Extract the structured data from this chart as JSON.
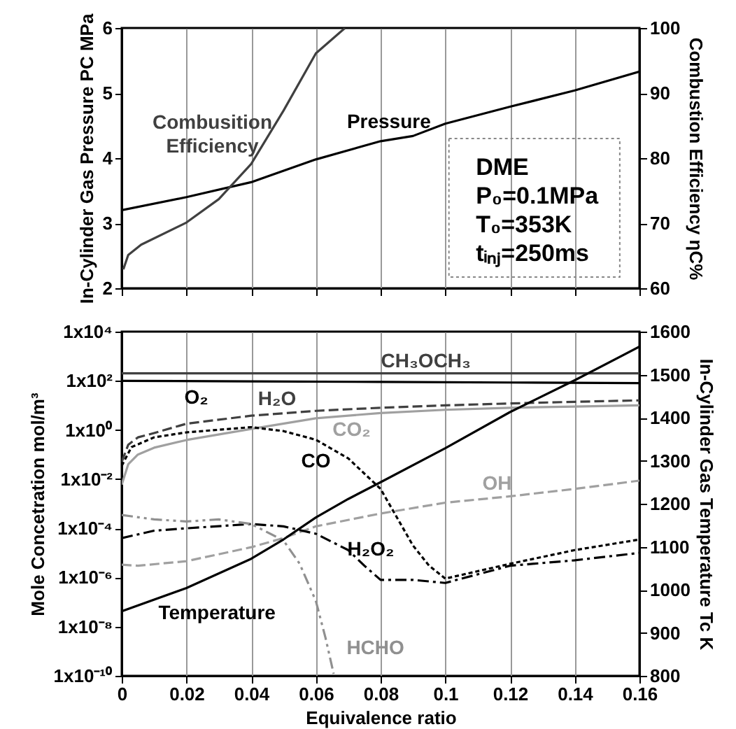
{
  "chart_data": [
    {
      "type": "line",
      "ylabel": "In-Cylinder Gas Pressure PC MPa",
      "y2label": "Combustion Efficiency ηC%",
      "xlim": [
        0,
        0.16
      ],
      "xticks": [
        0,
        0.02,
        0.04,
        0.06,
        0.08,
        0.1,
        0.12,
        0.14,
        0.16
      ],
      "ylim": [
        2,
        6
      ],
      "yticks": [
        2,
        3,
        4,
        5,
        6
      ],
      "y2lim": [
        60,
        100
      ],
      "y2ticks": [
        60,
        70,
        80,
        90,
        100
      ],
      "grid": "x",
      "tick_labels": "y",
      "series": [
        {
          "name": "Pressure",
          "color": "#000000",
          "line_style": "solid",
          "x": [
            0,
            0.02,
            0.04,
            0.06,
            0.08,
            0.09,
            0.1,
            0.12,
            0.14,
            0.16
          ],
          "values": [
            3.2,
            3.4,
            3.63,
            3.98,
            4.26,
            4.34,
            4.53,
            4.79,
            5.04,
            5.33
          ]
        },
        {
          "name": "Combusition Efficiency",
          "color": "#404040",
          "line_style": "solid",
          "axis": "y2",
          "x": [
            0.0005,
            0.002,
            0.006,
            0.02,
            0.03,
            0.04,
            0.05,
            0.06,
            0.069
          ],
          "values": [
            62.9,
            65.1,
            66.7,
            70.1,
            73.7,
            79.1,
            87.3,
            96.1,
            100
          ]
        }
      ],
      "annotations": [
        "DME",
        "P₀=0.1MPa",
        "T₀=353K",
        "tᵢₙⱼ=250ms"
      ]
    },
    {
      "type": "line",
      "xlabel": "Equivalence ratio",
      "ylabel": "Mole Concetration mol/m³",
      "y2label": "In-Cylinder Gas Temperature Tc K",
      "log": "y",
      "xlim": [
        0,
        0.16
      ],
      "xticks": [
        0,
        0.02,
        0.04,
        0.06,
        0.08,
        0.1,
        0.12,
        0.14,
        0.16
      ],
      "ylim": [
        1e-10,
        10000
      ],
      "yticks": [
        {
          "value": 1e-10,
          "label": "1x10⁻¹⁰"
        },
        {
          "value": 1e-08,
          "label": "1x10⁻⁸"
        },
        {
          "value": 1e-06,
          "label": "1x10⁻⁶"
        },
        {
          "value": 0.0001,
          "label": "1x10⁻⁴"
        },
        {
          "value": 0.01,
          "label": "1x10⁻²"
        },
        {
          "value": 1,
          "label": "1x10⁰"
        },
        {
          "value": 100,
          "label": "1x10²"
        },
        {
          "value": 10000,
          "label": "1x10⁴"
        }
      ],
      "y2lim": [
        800,
        1600
      ],
      "y2ticks": [
        800,
        900,
        1000,
        1100,
        1200,
        1300,
        1400,
        1500,
        1600
      ],
      "grid": "x",
      "series": [
        {
          "name": "CH₃OCH₃",
          "color": "#404040",
          "line_style": "solid",
          "x": [
            0,
            0.16
          ],
          "values": [
            200,
            200
          ]
        },
        {
          "name": "O₂",
          "color": "#000000",
          "line_style": "solid",
          "x": [
            0,
            0.04,
            0.08,
            0.12,
            0.16
          ],
          "values": [
            100,
            95,
            90,
            85,
            80
          ]
        },
        {
          "name": "H₂O",
          "color": "#404040",
          "line_style": "dashed",
          "x": [
            0,
            0.002,
            0.005,
            0.01,
            0.02,
            0.04,
            0.06,
            0.08,
            0.1,
            0.12,
            0.14,
            0.16
          ],
          "values": [
            0.05,
            0.25,
            0.5,
            0.75,
            1.8,
            3.8,
            6,
            8,
            10,
            12,
            14,
            16
          ]
        },
        {
          "name": "CO₂",
          "color": "#a0a0a0",
          "line_style": "solid",
          "x": [
            0,
            0.002,
            0.005,
            0.01,
            0.02,
            0.04,
            0.06,
            0.08,
            0.1,
            0.12,
            0.14,
            0.16
          ],
          "values": [
            0.006,
            0.04,
            0.1,
            0.19,
            0.39,
            1.1,
            3,
            4.9,
            6.6,
            8,
            9,
            10
          ]
        },
        {
          "name": "CO",
          "color": "#000000",
          "line_style": "dotted",
          "x": [
            0,
            0.003,
            0.01,
            0.02,
            0.04,
            0.05,
            0.06,
            0.07,
            0.08,
            0.09,
            0.095,
            0.1,
            0.12,
            0.14,
            0.16
          ],
          "values": [
            0.035,
            0.2,
            0.5,
            0.8,
            1.3,
            0.9,
            0.4,
            0.07,
            0.004,
            2e-05,
            3e-06,
            9e-07,
            3.6e-06,
            1.3e-05,
            3.5e-05
          ]
        },
        {
          "name": "OH",
          "color": "#a0a0a0",
          "line_style": "dashed",
          "x": [
            0,
            0.005,
            0.02,
            0.04,
            0.05,
            0.06,
            0.08,
            0.1,
            0.12,
            0.14,
            0.16
          ],
          "values": [
            3.3e-06,
            3e-06,
            4.6e-06,
            1.7e-05,
            4e-05,
            0.00012,
            0.0004,
            0.0011,
            0.002,
            0.004,
            0.0087
          ]
        },
        {
          "name": "H₂O₂",
          "color": "#000000",
          "line_style": "dashdot",
          "x": [
            0,
            0.01,
            0.02,
            0.04,
            0.05,
            0.06,
            0.07,
            0.075,
            0.08,
            0.09,
            0.1,
            0.12,
            0.14,
            0.16
          ],
          "values": [
            4e-05,
            8e-05,
            0.0001,
            0.00015,
            0.00012,
            6e-05,
            1.3e-05,
            3e-06,
            8e-07,
            8e-07,
            6e-07,
            3e-06,
            5e-06,
            1e-05
          ]
        },
        {
          "name": "HCHO",
          "color": "#909090",
          "line_style": "dashdotdot",
          "x": [
            0,
            0.01,
            0.02,
            0.03,
            0.04,
            0.05,
            0.055,
            0.06,
            0.063,
            0.0655
          ],
          "values": [
            0.00035,
            0.00023,
            0.00019,
            0.00023,
            0.00015,
            3.2e-05,
            3.6e-06,
            1.1e-07,
            3.4e-09,
            1.2e-10
          ]
        },
        {
          "name": "Temperature",
          "color": "#000000",
          "line_style": "solid",
          "axis": "y2",
          "x": [
            0,
            0.02,
            0.04,
            0.05,
            0.06,
            0.07,
            0.08,
            0.1,
            0.12,
            0.14,
            0.16
          ],
          "values": [
            950,
            1004,
            1072,
            1117,
            1168,
            1211,
            1250,
            1329,
            1413,
            1487,
            1565
          ]
        }
      ]
    }
  ]
}
